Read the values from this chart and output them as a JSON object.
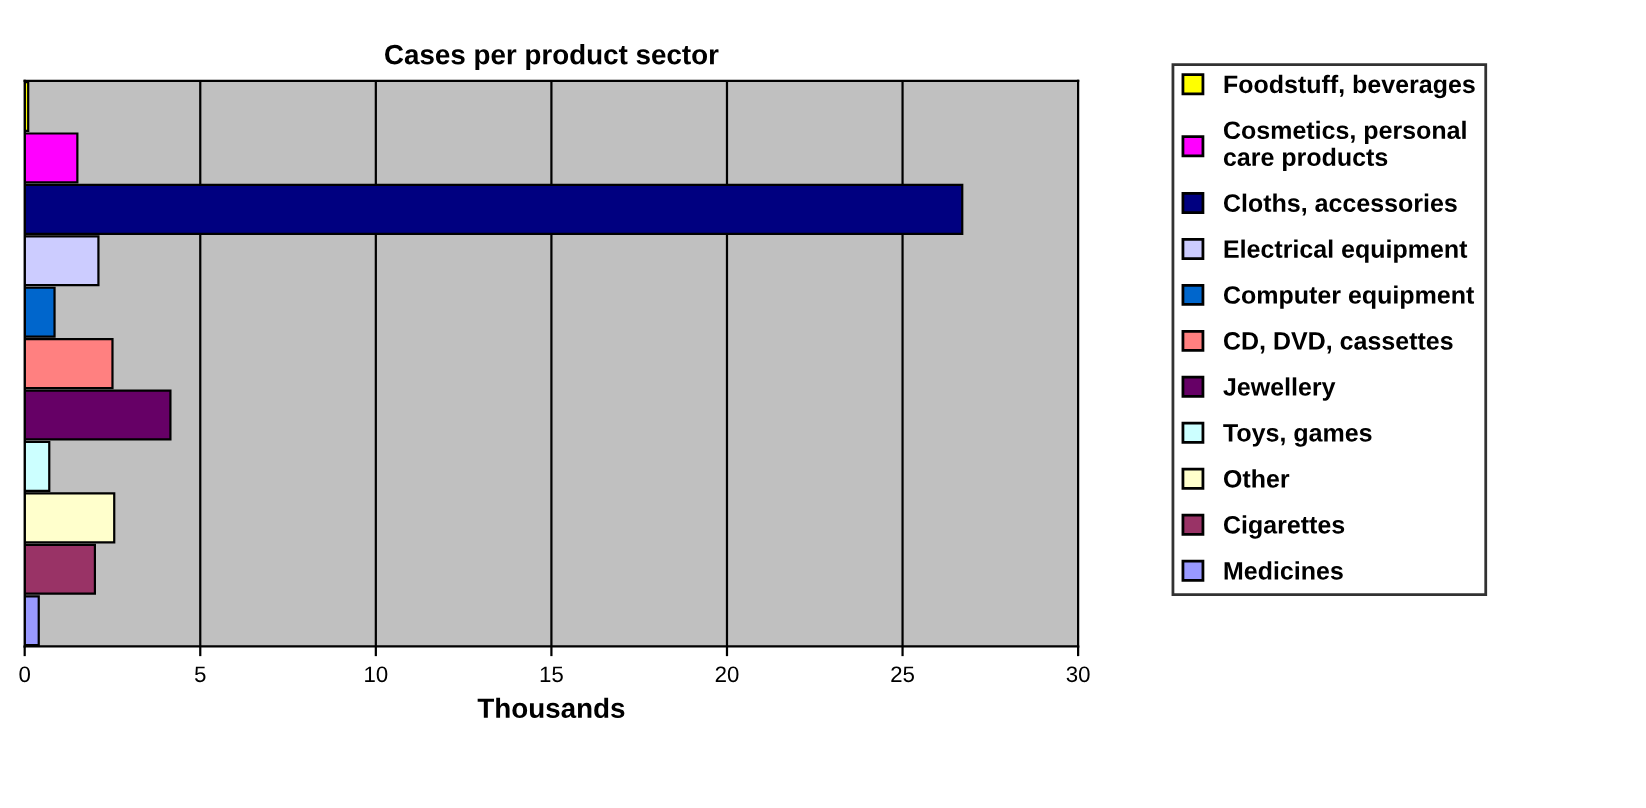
{
  "chart_data": {
    "type": "bar",
    "orientation": "horizontal",
    "title": "Cases per product sector",
    "xlabel": "Thousands",
    "categories": [
      null,
      null,
      null,
      null,
      null,
      null,
      null,
      null,
      null,
      null,
      null
    ],
    "xlim": [
      0,
      30
    ],
    "xticks": [
      0,
      5,
      10,
      15,
      20,
      25,
      30
    ],
    "grid": "x",
    "legend": "right",
    "tick_labels": "x",
    "series": [
      {
        "name": "Foodstuff, beverages",
        "color": "#ffff00",
        "values": [
          0.1,
          null,
          null,
          null,
          null,
          null,
          null,
          null,
          null,
          null,
          null
        ]
      },
      {
        "name": "Cosmetics, personal care products",
        "color": "#ff00ff",
        "values": [
          null,
          1.5,
          null,
          null,
          null,
          null,
          null,
          null,
          null,
          null,
          null
        ]
      },
      {
        "name": "Cloths, accessories",
        "color": "#000080",
        "values": [
          null,
          null,
          26.7,
          null,
          null,
          null,
          null,
          null,
          null,
          null,
          null
        ]
      },
      {
        "name": "Electrical equipment",
        "color": "#ccccff",
        "values": [
          null,
          null,
          null,
          2.1,
          null,
          null,
          null,
          null,
          null,
          null,
          null
        ]
      },
      {
        "name": "Computer equipment",
        "color": "#0066cc",
        "values": [
          null,
          null,
          null,
          null,
          0.85,
          null,
          null,
          null,
          null,
          null,
          null
        ]
      },
      {
        "name": "CD, DVD, cassettes",
        "color": "#ff8080",
        "values": [
          null,
          null,
          null,
          null,
          null,
          2.5,
          null,
          null,
          null,
          null,
          null
        ]
      },
      {
        "name": "Jewellery",
        "color": "#660066",
        "values": [
          null,
          null,
          null,
          null,
          null,
          null,
          4.15,
          null,
          null,
          null,
          null
        ]
      },
      {
        "name": "Toys, games",
        "color": "#ccffff",
        "values": [
          null,
          null,
          null,
          null,
          null,
          null,
          null,
          0.7,
          null,
          null,
          null
        ]
      },
      {
        "name": "Other",
        "color": "#ffffcc",
        "values": [
          null,
          null,
          null,
          null,
          null,
          null,
          null,
          null,
          2.55,
          null,
          null
        ]
      },
      {
        "name": "Cigarettes",
        "color": "#993366",
        "values": [
          null,
          null,
          null,
          null,
          null,
          null,
          null,
          null,
          null,
          2.0,
          null
        ]
      },
      {
        "name": "Medicines",
        "color": "#9999ff",
        "values": [
          null,
          null,
          null,
          null,
          null,
          null,
          null,
          null,
          null,
          null,
          0.4
        ]
      }
    ]
  }
}
